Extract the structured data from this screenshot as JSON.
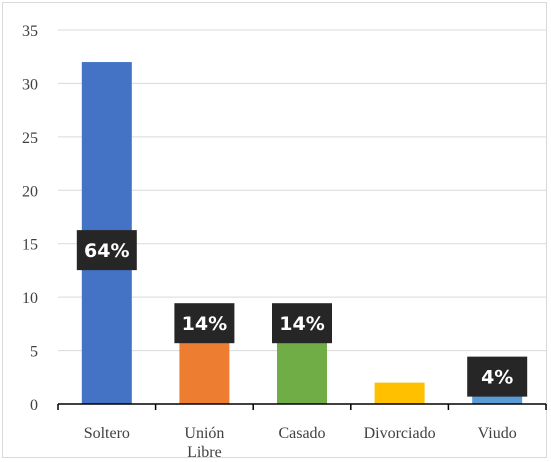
{
  "chart_data": {
    "type": "bar",
    "categories": [
      [
        "Soltero"
      ],
      [
        "Unión",
        "Libre"
      ],
      [
        "Casado"
      ],
      [
        "Divorciado"
      ],
      [
        "Viudo"
      ]
    ],
    "values": [
      32,
      7,
      7,
      2,
      2
    ],
    "data_labels": [
      "64%",
      "14%",
      "14%",
      "",
      "4%"
    ],
    "bar_colors": [
      "#4472c4",
      "#ed7d31",
      "#70ad47",
      "#ffc000",
      "#5b9bd5"
    ],
    "label_box_color": "#262626",
    "ylim": [
      0,
      35
    ],
    "yticks": [
      0,
      5,
      10,
      15,
      20,
      25,
      30,
      35
    ],
    "grid": true,
    "gridline_color": "#d9d9d9",
    "axis_color": "#000000",
    "title": "",
    "xlabel": "",
    "ylabel": ""
  }
}
